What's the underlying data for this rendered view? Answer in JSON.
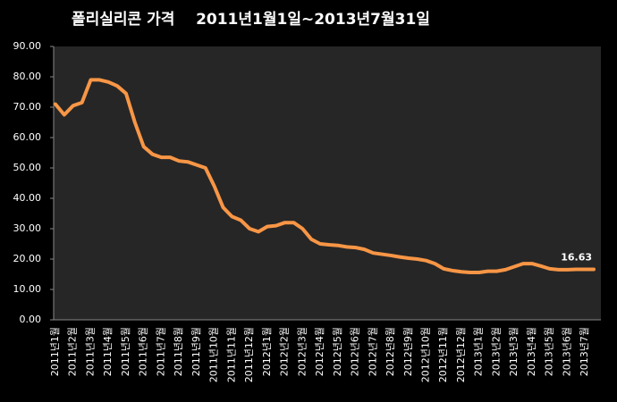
{
  "chart_data": {
    "type": "line",
    "title": "폴리실리콘 가격    2011년1월1일~2013년7월31일",
    "categories": [
      "2011년1월",
      null,
      "2011년2월",
      null,
      "2011년3월",
      null,
      "2011년4월",
      null,
      "2011년5월",
      null,
      "2011년6월",
      null,
      "2011년7월",
      null,
      "2011년8월",
      null,
      "2011년9월",
      null,
      "2011년10월",
      null,
      "2011년11월",
      null,
      "2011년12월",
      null,
      "2012년1월",
      null,
      "2012년2월",
      null,
      "2012년3월",
      null,
      "2012년4월",
      null,
      "2012년5월",
      null,
      "2012년6월",
      null,
      "2012년7월",
      null,
      "2012년8월",
      null,
      "2012년9월",
      null,
      "2012년10월",
      null,
      "2012년11월",
      null,
      "2012년12월",
      null,
      "2013년1월",
      null,
      "2013년2월",
      null,
      "2013년3월",
      null,
      "2013년4월",
      null,
      "2013년5월",
      null,
      "2013년6월",
      null,
      "2013년7월",
      null
    ],
    "values": [
      71,
      67.5,
      70.5,
      71.5,
      79,
      79,
      78.3,
      77,
      74.5,
      65,
      57,
      54.5,
      53.5,
      53.5,
      52.3,
      52,
      51,
      50,
      44,
      37,
      34,
      32.8,
      30,
      29,
      30.7,
      31,
      32,
      32,
      30,
      26.5,
      25,
      24.7,
      24.5,
      24,
      23.8,
      23.2,
      22,
      21.6,
      21.2,
      20.7,
      20.3,
      20,
      19.5,
      18.5,
      16.8,
      16.2,
      15.8,
      15.6,
      15.6,
      16,
      16,
      16.5,
      17.5,
      18.5,
      18.5,
      17.7,
      16.8,
      16.5,
      16.5,
      16.6,
      16.6,
      16.63
    ],
    "color": "#f79646",
    "ylim": [
      0,
      90
    ],
    "yticks": [
      {
        "value": 0,
        "label": "0.00"
      },
      {
        "value": 10,
        "label": "10.00"
      },
      {
        "value": 20,
        "label": "20.00"
      },
      {
        "value": 30,
        "label": "30.00"
      },
      {
        "value": 40,
        "label": "40.00"
      },
      {
        "value": 50,
        "label": "50.00"
      },
      {
        "value": 60,
        "label": "60.00"
      },
      {
        "value": 70,
        "label": "70.00"
      },
      {
        "value": 80,
        "label": "80.00"
      },
      {
        "value": 90,
        "label": "90.00"
      }
    ],
    "grid": false
  }
}
